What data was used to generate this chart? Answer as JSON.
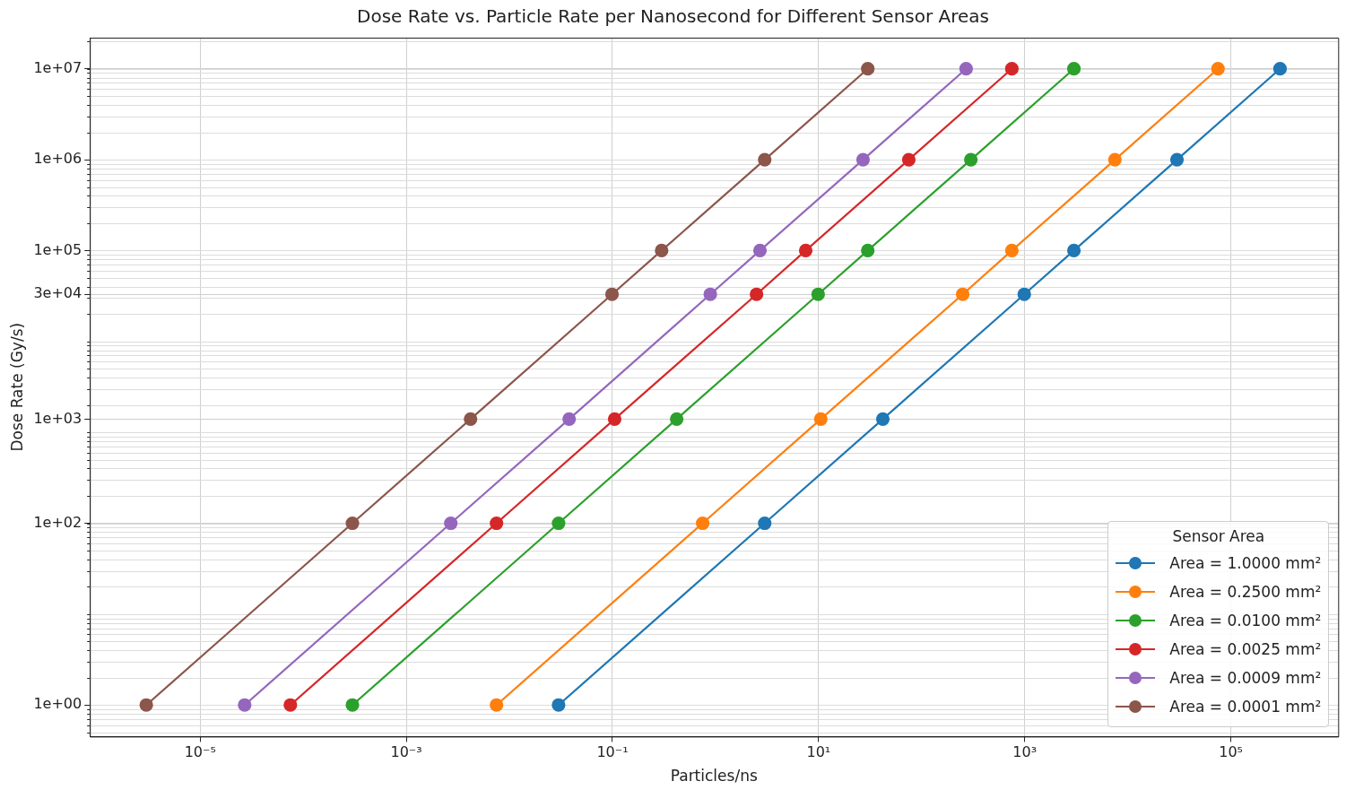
{
  "chart_data": {
    "type": "line",
    "title": "Dose Rate vs. Particle Rate per Nanosecond for Different Sensor Areas",
    "xlabel": "Particles/ns",
    "ylabel": "Dose Rate (Gy/s)",
    "legend_title": "Sensor Area",
    "log": "xy",
    "grid": true,
    "legend": "bottom right",
    "marker": "circle",
    "line_style": "solid",
    "xlim": [
      8.5e-07,
      1100000.0
    ],
    "ylim": [
      0.45,
      22000000.0
    ],
    "xticks": [
      {
        "value": 1e-05,
        "label": "10⁻⁵"
      },
      {
        "value": 0.001,
        "label": "10⁻³"
      },
      {
        "value": 0.1,
        "label": "10⁻¹"
      },
      {
        "value": 10,
        "label": "10¹"
      },
      {
        "value": 1000,
        "label": "10³"
      },
      {
        "value": 100000,
        "label": "10⁵"
      }
    ],
    "yticks": [
      {
        "value": 1,
        "label": "1e+00"
      },
      {
        "value": 100,
        "label": "1e+02"
      },
      {
        "value": 1400,
        "label": "1e+03"
      },
      {
        "value": 33000,
        "label": "3e+04"
      },
      {
        "value": 100000,
        "label": "1e+05"
      },
      {
        "value": 1000000,
        "label": "1e+06"
      },
      {
        "value": 10000000,
        "label": "1e+07"
      }
    ],
    "series": [
      {
        "name": "Area = 1.0000 mm²",
        "color": "#1f77b4",
        "x": [
          0.03,
          3,
          42,
          990,
          3000,
          30000,
          300000
        ],
        "values": [
          1,
          100,
          1400,
          33000,
          100000,
          1000000,
          10000000
        ]
      },
      {
        "name": "Area = 0.2500 mm²",
        "color": "#ff7f0e",
        "x": [
          0.0075,
          0.75,
          10.5,
          250,
          750,
          7500,
          75000
        ],
        "values": [
          1,
          100,
          1400,
          33000,
          100000,
          1000000,
          10000000
        ]
      },
      {
        "name": "Area = 0.0100 mm²",
        "color": "#2ca02c",
        "x": [
          0.0003,
          0.03,
          0.42,
          9.9,
          30,
          300,
          3000
        ],
        "values": [
          1,
          100,
          1400,
          33000,
          100000,
          1000000,
          10000000
        ]
      },
      {
        "name": "Area = 0.0025 mm²",
        "color": "#d62728",
        "x": [
          7.5e-05,
          0.0075,
          0.105,
          2.5,
          7.5,
          75,
          750
        ],
        "values": [
          1,
          100,
          1400,
          33000,
          100000,
          1000000,
          10000000
        ]
      },
      {
        "name": "Area = 0.0009 mm²",
        "color": "#9467bd",
        "x": [
          2.7e-05,
          0.0027,
          0.038,
          0.89,
          2.7,
          27,
          270
        ],
        "values": [
          1,
          100,
          1400,
          33000,
          100000,
          1000000,
          10000000
        ]
      },
      {
        "name": "Area = 0.0001 mm²",
        "color": "#8c564b",
        "x": [
          3e-06,
          0.0003,
          0.0042,
          0.099,
          0.3,
          3,
          30
        ],
        "values": [
          1,
          100,
          1400,
          33000,
          100000,
          1000000,
          10000000
        ]
      }
    ]
  }
}
